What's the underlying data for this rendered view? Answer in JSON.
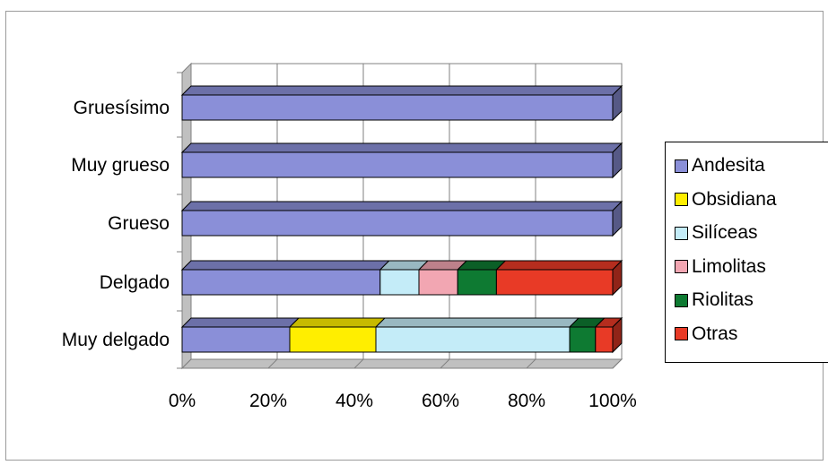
{
  "chart_data": {
    "type": "bar",
    "orientation": "horizontal",
    "stacked": "percent",
    "style": "3d",
    "categories": [
      "Gruesísimo",
      "Muy grueso",
      "Grueso",
      "Delgado",
      "Muy delgado"
    ],
    "series": [
      {
        "name": "Andesita",
        "color": "#8a8fd8",
        "values": [
          100,
          100,
          100,
          46,
          25
        ]
      },
      {
        "name": "Obsidiana",
        "color": "#ffee00",
        "values": [
          0,
          0,
          0,
          0,
          20
        ]
      },
      {
        "name": "Silíceas",
        "color": "#c4ecf8",
        "values": [
          0,
          0,
          0,
          9,
          45
        ]
      },
      {
        "name": "Limolitas",
        "color": "#f2a6b2",
        "values": [
          0,
          0,
          0,
          9,
          0
        ]
      },
      {
        "name": "Riolitas",
        "color": "#0e7a32",
        "values": [
          0,
          0,
          0,
          9,
          6
        ]
      },
      {
        "name": "Otras",
        "color": "#e83a26",
        "values": [
          0,
          0,
          0,
          27,
          4
        ]
      }
    ],
    "xticks": [
      "0%",
      "20%",
      "40%",
      "60%",
      "80%",
      "100%"
    ],
    "xlim": [
      0,
      100
    ],
    "grid": true,
    "legend_position": "right",
    "title": "",
    "xlabel": "",
    "ylabel": ""
  }
}
